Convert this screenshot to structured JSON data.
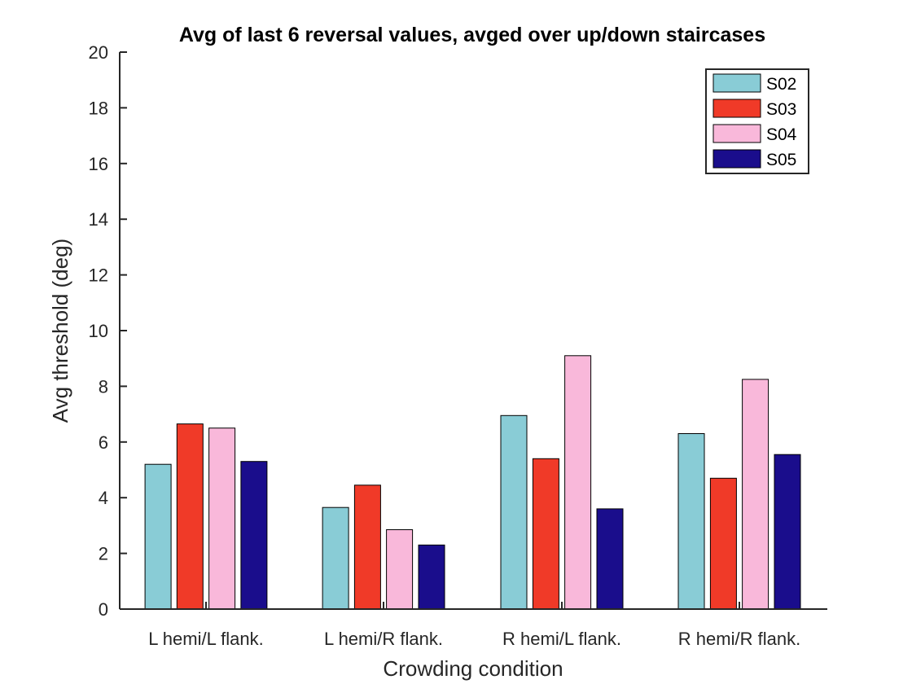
{
  "chart_data": {
    "type": "bar",
    "title": "Avg of last 6 reversal values, avged over up/down staircases",
    "xlabel": "Crowding condition",
    "ylabel": "Avg threshold (deg)",
    "ylim": [
      0,
      20
    ],
    "yticks": [
      "0",
      "2",
      "4",
      "6",
      "8",
      "10",
      "12",
      "14",
      "16",
      "18",
      "20"
    ],
    "categories": [
      "L hemi/L flank.",
      "L hemi/R flank.",
      "R hemi/L flank.",
      "R hemi/R flank."
    ],
    "series": [
      {
        "name": "S02",
        "color": "#89CCD6",
        "values": [
          5.2,
          3.65,
          6.95,
          6.3
        ]
      },
      {
        "name": "S03",
        "color": "#F03A28",
        "values": [
          6.65,
          4.45,
          5.4,
          4.7
        ]
      },
      {
        "name": "S04",
        "color": "#F9B8DA",
        "values": [
          6.5,
          2.85,
          9.1,
          8.25
        ]
      },
      {
        "name": "S05",
        "color": "#1A0D8C",
        "values": [
          5.3,
          2.3,
          3.6,
          5.55
        ]
      }
    ],
    "grid": false,
    "legend": "top-right"
  }
}
